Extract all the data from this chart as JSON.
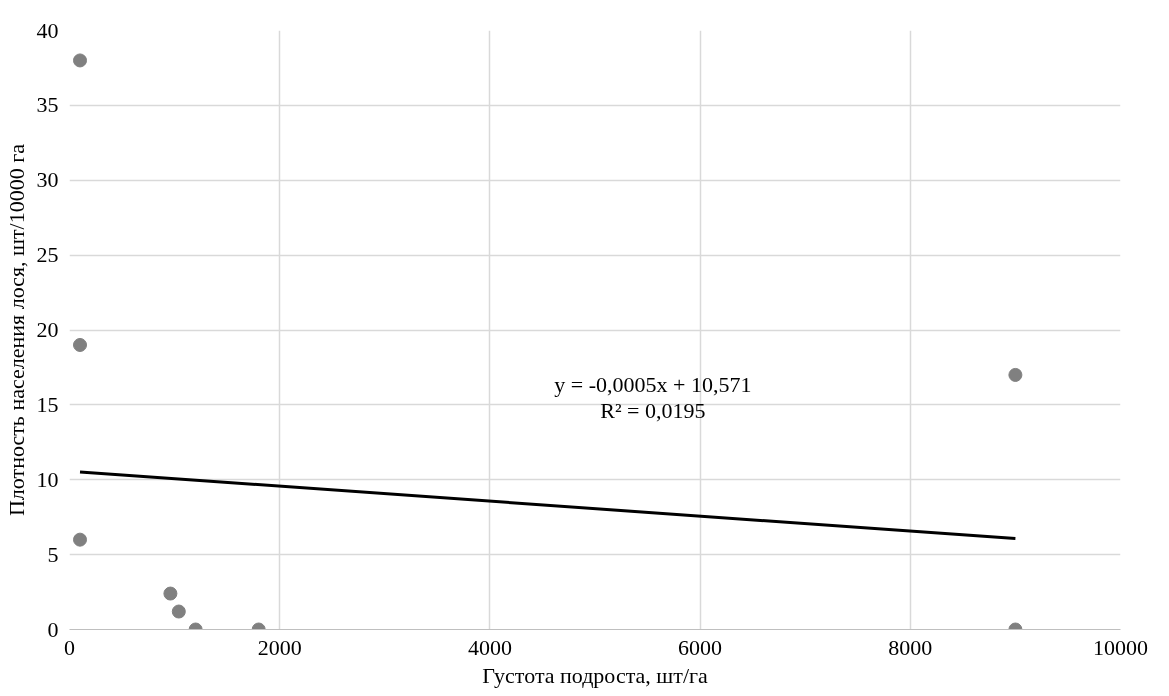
{
  "chart_data": {
    "type": "scatter",
    "xlabel": "Густота подроста, шт/га",
    "ylabel": "Плотность населения лося, шт/10000 га",
    "x": [
      100,
      100,
      100,
      960,
      1040,
      1200,
      1800,
      9000,
      9000
    ],
    "series": [
      {
        "color": "#808080",
        "marker": "circle",
        "values": [
          38,
          19,
          6,
          2.4,
          1.2,
          0,
          0,
          17,
          0
        ]
      },
      {
        "type": "line",
        "color": "#000000",
        "x": [
          100,
          9000
        ],
        "values": [
          10.52,
          6.07
        ]
      }
    ],
    "xlim": [
      0,
      10000
    ],
    "xticks": [
      0,
      2000,
      4000,
      6000,
      8000,
      10000
    ],
    "ylim": [
      0,
      40
    ],
    "yticks": [
      0,
      5,
      10,
      15,
      20,
      25,
      30,
      35,
      40
    ],
    "grid": true,
    "line_style": "solid",
    "annotations": [
      "y = -0,0005x + 10,571\nR² = 0,0195"
    ]
  }
}
